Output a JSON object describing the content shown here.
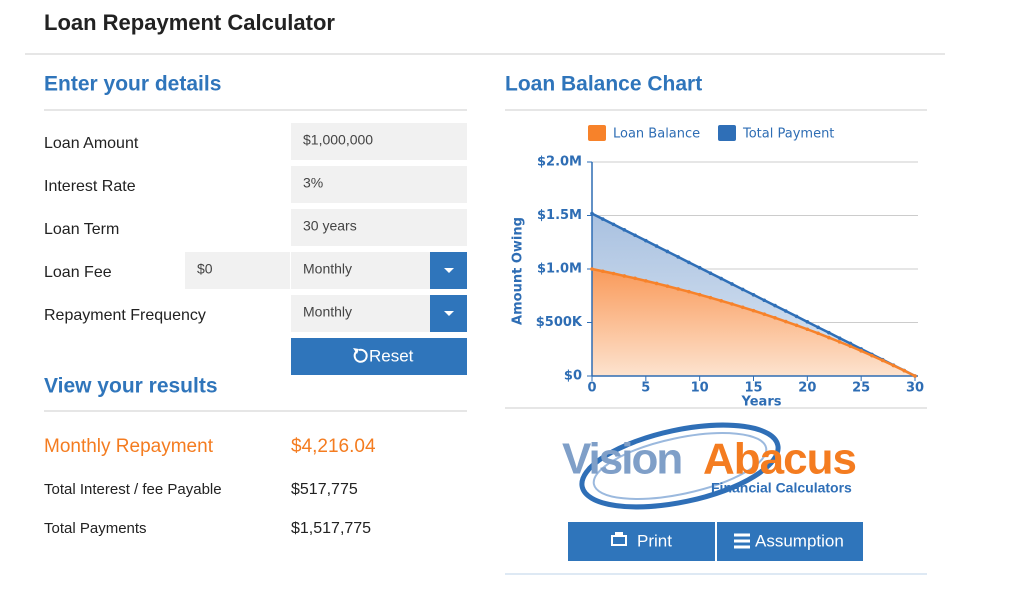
{
  "header": {
    "title": "Loan Repayment Calculator"
  },
  "details": {
    "title": "Enter your details",
    "fields": [
      {
        "label": "Loan Amount",
        "value": "$1,000,000"
      },
      {
        "label": "Interest Rate",
        "value": "3%"
      },
      {
        "label": "Loan Term",
        "value": "30 years"
      },
      {
        "label": "Loan Fee",
        "value": "$0",
        "frequency": "Monthly"
      },
      {
        "label": "Repayment Frequency",
        "value": "Monthly"
      }
    ],
    "reset": "Reset"
  },
  "results": {
    "title": "View your results",
    "rows": [
      {
        "label": "Monthly Repayment",
        "value": "$4,216.04"
      },
      {
        "label": "Total Interest / fee Payable",
        "value": "$517,775"
      },
      {
        "label": "Total Payments",
        "value": "$1,517,775"
      }
    ]
  },
  "chart_data": {
    "type": "area",
    "title": "Loan Balance Chart",
    "x_label": "Years",
    "y_label": "Amount Owing",
    "x": [
      0,
      1,
      2,
      3,
      4,
      5,
      6,
      7,
      8,
      9,
      10,
      11,
      12,
      13,
      14,
      15,
      16,
      17,
      18,
      19,
      20,
      21,
      22,
      23,
      24,
      25,
      26,
      27,
      28,
      29,
      30
    ],
    "series": [
      {
        "name": "Loan Balance",
        "color": "#f7822a",
        "values": [
          1000000,
          979000,
          958000,
          935000,
          913000,
          889000,
          865000,
          840000,
          814000,
          788000,
          760000,
          732000,
          703000,
          673000,
          642000,
          611000,
          578000,
          544000,
          509000,
          474000,
          437000,
          399000,
          359000,
          319000,
          278000,
          235000,
          190000,
          145000,
          98000,
          50000,
          0
        ]
      },
      {
        "name": "Total Payment",
        "color": "#2f6fb7",
        "values": [
          1518000,
          1467000,
          1417000,
          1366000,
          1315000,
          1265000,
          1214000,
          1164000,
          1113000,
          1062000,
          1012000,
          961000,
          911000,
          860000,
          809000,
          759000,
          708000,
          658000,
          607000,
          557000,
          506000,
          455000,
          405000,
          354000,
          304000,
          253000,
          202000,
          152000,
          101000,
          51000,
          0
        ]
      }
    ],
    "xlim": [
      0,
      30
    ],
    "xticks": [
      0,
      5,
      10,
      15,
      20,
      25,
      30
    ],
    "ylim": [
      0,
      2000000
    ],
    "yticks": [
      {
        "value": 0,
        "label": "$0"
      },
      {
        "value": 500000,
        "label": "$500K"
      },
      {
        "value": 1000000,
        "label": "$1.0M"
      },
      {
        "value": 1500000,
        "label": "$1.5M"
      },
      {
        "value": 2000000,
        "label": "$2.0M"
      }
    ],
    "grid": true,
    "legend": "top"
  },
  "logo": {
    "brand_left": "Vision",
    "brand_right": "Abacus",
    "tagline": "Financial Calculators"
  },
  "buttons": [
    "Print",
    "Assumption"
  ]
}
